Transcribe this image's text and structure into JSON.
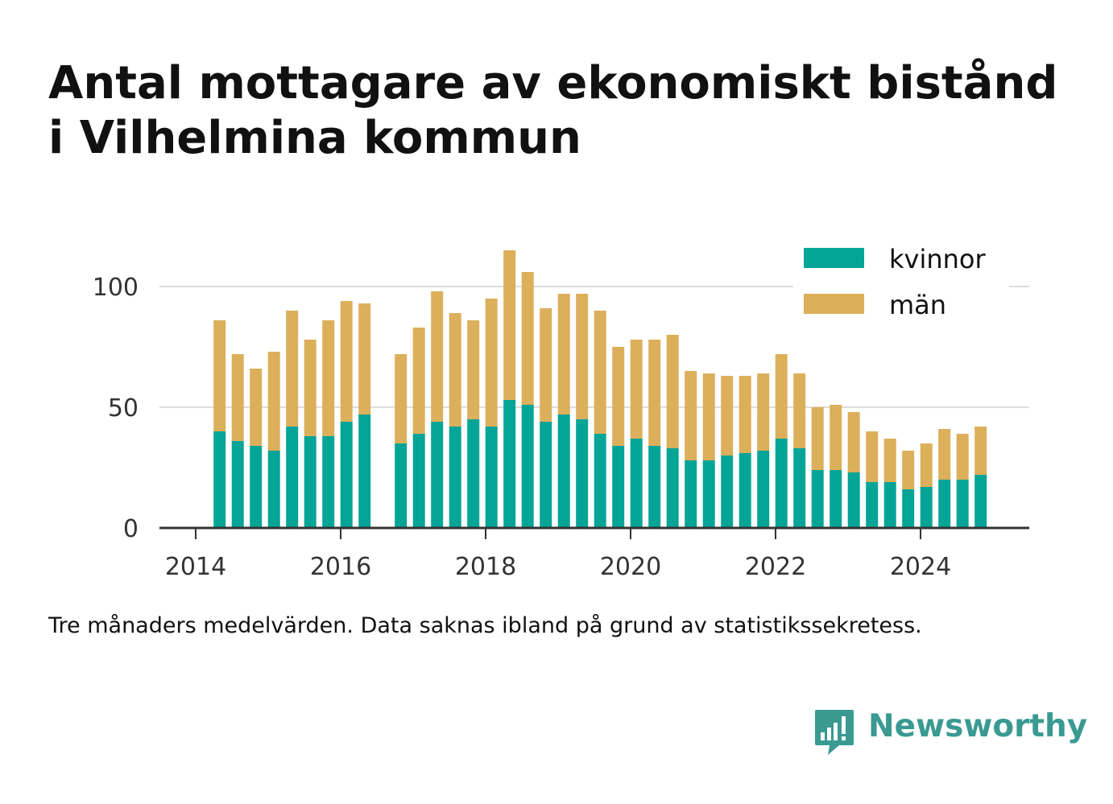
{
  "title": "Antal mottagare av ekonomiskt bistånd i Vilhelmina kommun",
  "caption": "Tre månaders medelvärden. Data saknas ibland på grund av statistikssekretess.",
  "brand": {
    "name": "Newsworthy",
    "color": "#3a9a92",
    "icon": "chart-bubble-icon"
  },
  "colors": {
    "kvinnor": "#04a497",
    "man": "#dcaf5b",
    "grid": "#dddddd",
    "axis": "#333333"
  },
  "chart_data": {
    "type": "bar",
    "stacked": true,
    "x_ticks": [
      "2014",
      "2016",
      "2018",
      "2020",
      "2022",
      "2024"
    ],
    "y_ticks": [
      "0",
      "50",
      "100"
    ],
    "ylim": [
      0,
      120
    ],
    "xlim": [
      2013.5,
      2025.5
    ],
    "grid": true,
    "legend": "top-right",
    "x": [
      2014.33,
      2014.58,
      2014.83,
      2015.08,
      2015.33,
      2015.58,
      2015.83,
      2016.08,
      2016.33,
      2016.83,
      2017.08,
      2017.33,
      2017.58,
      2017.83,
      2018.08,
      2018.33,
      2018.58,
      2018.83,
      2019.08,
      2019.33,
      2019.58,
      2019.83,
      2020.08,
      2020.33,
      2020.58,
      2020.83,
      2021.08,
      2021.33,
      2021.58,
      2021.83,
      2022.08,
      2022.33,
      2022.58,
      2022.83,
      2023.08,
      2023.33,
      2023.58,
      2023.83,
      2024.08,
      2024.33,
      2024.58,
      2024.83
    ],
    "series": [
      {
        "name": "kvinnor",
        "values": [
          40,
          36,
          34,
          32,
          42,
          38,
          38,
          44,
          47,
          35,
          39,
          44,
          42,
          45,
          42,
          53,
          51,
          44,
          47,
          45,
          39,
          34,
          37,
          34,
          33,
          28,
          28,
          30,
          31,
          32,
          37,
          33,
          24,
          24,
          23,
          19,
          19,
          16,
          17,
          20,
          20,
          22
        ]
      },
      {
        "name": "män",
        "values": [
          46,
          36,
          32,
          41,
          48,
          40,
          48,
          50,
          46,
          37,
          44,
          54,
          47,
          41,
          53,
          62,
          55,
          47,
          50,
          52,
          51,
          41,
          41,
          44,
          47,
          37,
          36,
          33,
          32,
          32,
          35,
          31,
          26,
          27,
          25,
          21,
          18,
          16,
          18,
          21,
          19,
          20
        ]
      }
    ]
  }
}
